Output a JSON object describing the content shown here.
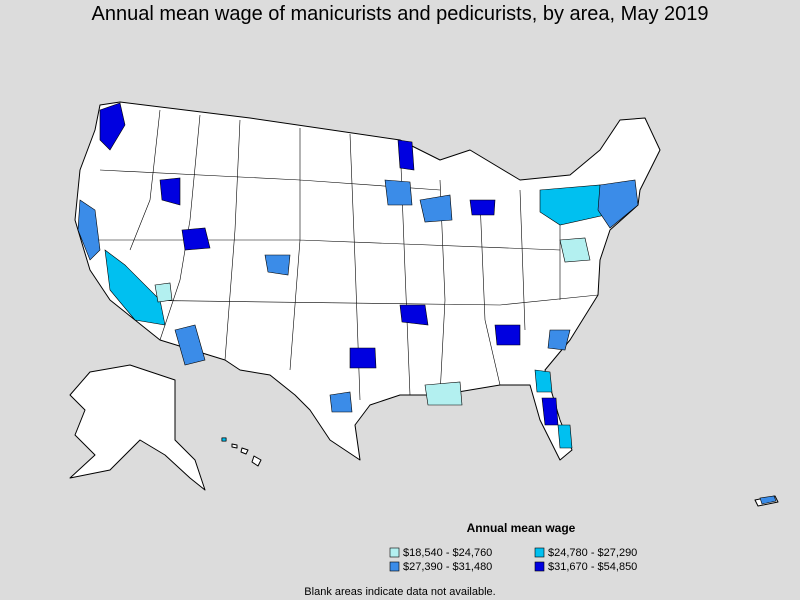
{
  "title": "Annual mean wage of manicurists and pedicurists, by area, May 2019",
  "legend": {
    "title": "Annual mean wage",
    "items": [
      {
        "label": "$18,540 - $24,760",
        "color": "#b3f0f0"
      },
      {
        "label": "$24,780 - $27,290",
        "color": "#00c0f0"
      },
      {
        "label": "$27,390 - $31,480",
        "color": "#3b8ce8"
      },
      {
        "label": "$31,670 - $54,850",
        "color": "#0000e0"
      }
    ]
  },
  "note": "Blank areas indicate data not available."
}
